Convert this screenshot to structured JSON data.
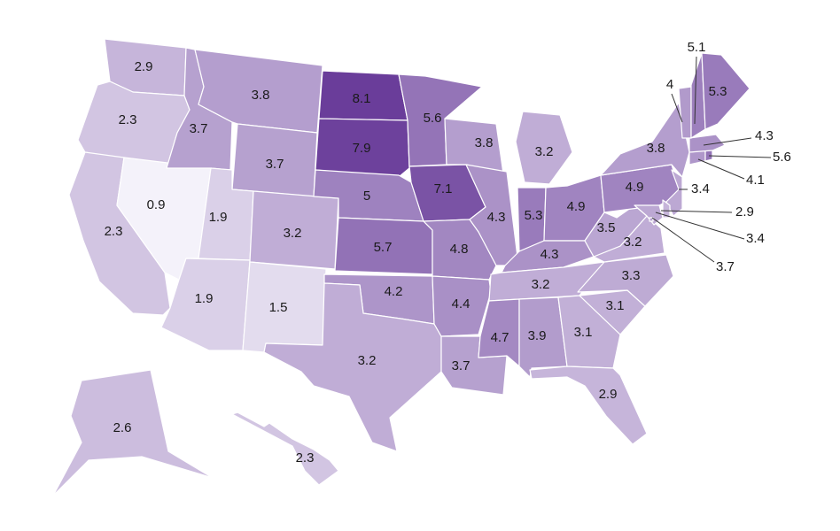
{
  "color_scale": {
    "min_value": 0.9,
    "max_value": 8.1,
    "low_color": "#f4f2fa",
    "high_color": "#6a3d9a"
  },
  "states": [
    {
      "id": "WA",
      "value": 2.9
    },
    {
      "id": "OR",
      "value": 2.3
    },
    {
      "id": "CA",
      "value": 2.3
    },
    {
      "id": "NV",
      "value": 0.9
    },
    {
      "id": "ID",
      "value": 3.7
    },
    {
      "id": "MT",
      "value": 3.8
    },
    {
      "id": "WY",
      "value": 3.7
    },
    {
      "id": "UT",
      "value": 1.9
    },
    {
      "id": "AZ",
      "value": 1.9
    },
    {
      "id": "CO",
      "value": 3.2
    },
    {
      "id": "NM",
      "value": 1.5
    },
    {
      "id": "ND",
      "value": 8.1
    },
    {
      "id": "SD",
      "value": 7.9
    },
    {
      "id": "NE",
      "value": 5
    },
    {
      "id": "KS",
      "value": 5.7
    },
    {
      "id": "OK",
      "value": 4.2
    },
    {
      "id": "TX",
      "value": 3.2
    },
    {
      "id": "MN",
      "value": 5.6
    },
    {
      "id": "IA",
      "value": 7.1
    },
    {
      "id": "MO",
      "value": 4.8
    },
    {
      "id": "AR",
      "value": 4.4
    },
    {
      "id": "LA",
      "value": 3.7
    },
    {
      "id": "WI",
      "value": 3.8
    },
    {
      "id": "IL",
      "value": 4.3
    },
    {
      "id": "MI",
      "value": 3.2
    },
    {
      "id": "IN",
      "value": 5.3
    },
    {
      "id": "OH",
      "value": 4.9
    },
    {
      "id": "KY",
      "value": 4.3
    },
    {
      "id": "TN",
      "value": 3.2
    },
    {
      "id": "MS",
      "value": 4.7
    },
    {
      "id": "AL",
      "value": 3.9
    },
    {
      "id": "GA",
      "value": 3.1
    },
    {
      "id": "FL",
      "value": 2.9
    },
    {
      "id": "SC",
      "value": 3.1
    },
    {
      "id": "NC",
      "value": 3.3
    },
    {
      "id": "VA",
      "value": 3.2
    },
    {
      "id": "WV",
      "value": 3.5
    },
    {
      "id": "PA",
      "value": 4.9
    },
    {
      "id": "NY",
      "value": 3.8
    },
    {
      "id": "VT",
      "value": 4
    },
    {
      "id": "NH",
      "value": 5.1
    },
    {
      "id": "ME",
      "value": 5.3
    },
    {
      "id": "MA",
      "value": 4.3
    },
    {
      "id": "RI",
      "value": 5.6
    },
    {
      "id": "CT",
      "value": 4.1
    },
    {
      "id": "NJ",
      "value": 3.4
    },
    {
      "id": "DE",
      "value": 2.9
    },
    {
      "id": "MD",
      "value": 3.4
    },
    {
      "id": "DC",
      "value": 3.7
    },
    {
      "id": "AK",
      "value": 2.6
    },
    {
      "id": "HI",
      "value": 2.3
    }
  ],
  "labels": {
    "WA": "2.9",
    "OR": "2.3",
    "CA": "2.3",
    "NV": "0.9",
    "ID": "3.7",
    "MT": "3.8",
    "WY": "3.7",
    "UT": "1.9",
    "AZ": "1.9",
    "CO": "3.2",
    "NM": "1.5",
    "ND": "8.1",
    "SD": "7.9",
    "NE": "5",
    "KS": "5.7",
    "OK": "4.2",
    "TX": "3.2",
    "MN": "5.6",
    "IA": "7.1",
    "MO": "4.8",
    "AR": "4.4",
    "LA": "3.7",
    "WI": "3.8",
    "IL": "4.3",
    "MI": "3.2",
    "IN": "5.3",
    "OH": "4.9",
    "KY": "4.3",
    "TN": "3.2",
    "MS": "4.7",
    "AL": "3.9",
    "GA": "3.1",
    "FL": "2.9",
    "SC": "3.1",
    "NC": "3.3",
    "VA": "3.2",
    "WV": "3.5",
    "PA": "4.9",
    "NY": "3.8",
    "VT": "4",
    "NH": "5.1",
    "ME": "5.3",
    "MA": "4.3",
    "RI": "5.6",
    "CT": "4.1",
    "NJ": "3.4",
    "DE": "2.9",
    "MD": "3.4",
    "DC": "3.7",
    "AK": "2.6",
    "HI": "2.3"
  }
}
